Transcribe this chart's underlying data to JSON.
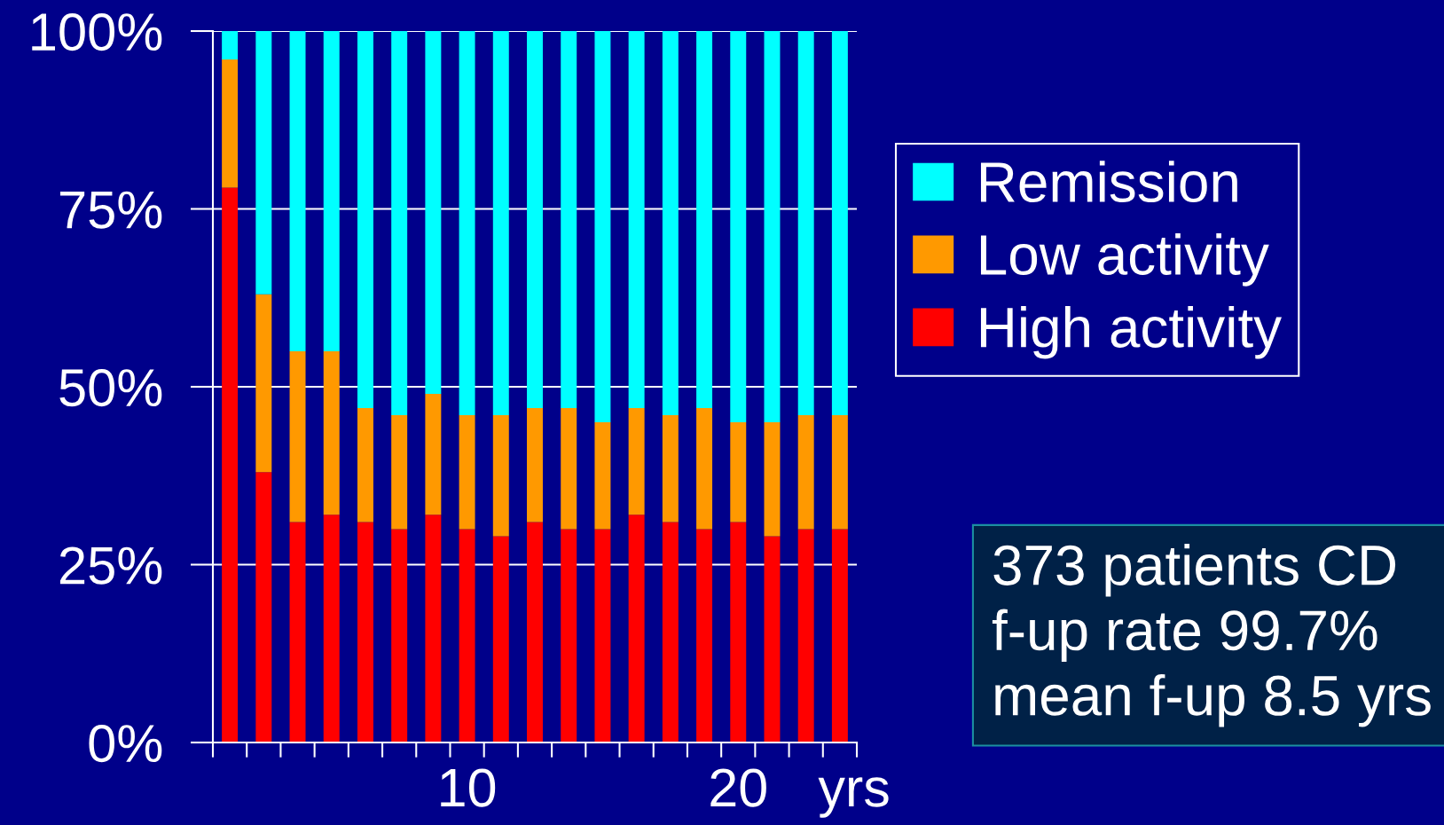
{
  "chart_data": {
    "type": "bar",
    "stacked": true,
    "categories": [
      null,
      null,
      null,
      null,
      null,
      null,
      null,
      "10",
      null,
      null,
      null,
      null,
      null,
      null,
      null,
      "20",
      null,
      null,
      null
    ],
    "xlabel": "yrs",
    "series": [
      {
        "name": "High activity",
        "color": "#ff0000",
        "values": [
          78,
          38,
          31,
          32,
          31,
          30,
          32,
          30,
          29,
          31,
          30,
          30,
          32,
          31,
          30,
          31,
          29,
          30,
          30
        ]
      },
      {
        "name": "Low activity",
        "color": "#ff9900",
        "values": [
          18,
          25,
          24,
          23,
          16,
          16,
          17,
          16,
          17,
          16,
          17,
          15,
          15,
          15,
          17,
          14,
          16,
          16,
          16
        ]
      },
      {
        "name": "Remission",
        "color": "#00ffff",
        "values": [
          4,
          37,
          45,
          45,
          53,
          54,
          51,
          54,
          54,
          53,
          53,
          55,
          53,
          54,
          53,
          55,
          55,
          54,
          54
        ]
      }
    ],
    "ylim": [
      0,
      100
    ],
    "yticks": [
      {
        "value": 0,
        "label": "0%"
      },
      {
        "value": 25,
        "label": "25%"
      },
      {
        "value": 50,
        "label": "50%"
      },
      {
        "value": 75,
        "label": "75%"
      },
      {
        "value": 100,
        "label": "100%"
      }
    ],
    "grid": "y",
    "legend": "right",
    "annotations": [
      "373 patients CD\nf-up rate 99.7%\nmean f-up 8.5 yrs"
    ]
  }
}
